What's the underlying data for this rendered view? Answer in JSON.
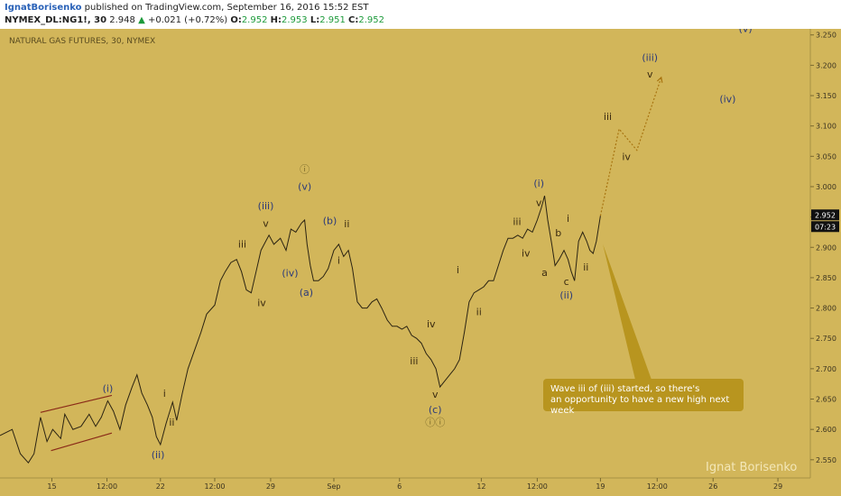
{
  "header": {
    "author": "IgnatBorisenko",
    "published": "published on TradingView.com, September 16, 2016 15:52 EST",
    "symbol": "NYMEX_DL:NG1!, 30",
    "last": "2.948",
    "change": "+0.021 (+0.72%)",
    "o_label": "O:",
    "o_value": "2.952",
    "h_label": "H:",
    "h_value": "2.953",
    "l_label": "L:",
    "l_value": "2.951",
    "c_label": "C:",
    "c_value": "2.952"
  },
  "pane_title": "NATURAL GAS FUTURES, 30, NYMEX",
  "watermark": "Ignat Borisenko",
  "annotation": "Wave iii of (iii) started, so there's an opportunity to have a new high next week",
  "price_tag": {
    "price": "2.952",
    "time": "07:23"
  },
  "colors": {
    "background": "#d2b65a",
    "price_line": "#2b2312",
    "projection": "#a87410",
    "channel": "#8a2a18",
    "note_box": "#b8951f",
    "tag_bg": "#111111"
  },
  "chart_data": {
    "type": "line",
    "title": "NATURAL GAS FUTURES, 30, NYMEX",
    "ylim": [
      2.52,
      3.26
    ],
    "y_ticks": [
      "2.550",
      "2.600",
      "2.650",
      "2.700",
      "2.750",
      "2.800",
      "2.850",
      "2.900",
      "2.950",
      "3.000",
      "3.050",
      "3.100",
      "3.150",
      "3.200",
      "3.250"
    ],
    "x_ticks": [
      "15",
      "12:00",
      "22",
      "12:00",
      "29",
      "Sep",
      "6",
      "12",
      "12:00",
      "19",
      "12:00",
      "26",
      "29"
    ],
    "x_domain": [
      0,
      100
    ],
    "x_tick_positions": [
      6.4,
      13.2,
      19.8,
      26.5,
      33.4,
      41.2,
      49.3,
      59.4,
      66.3,
      74.1,
      81.1,
      88.0,
      96.0
    ],
    "series": [
      {
        "values": [
          [
            0,
            2.59
          ],
          [
            1.5,
            2.6
          ],
          [
            2.5,
            2.56
          ],
          [
            3.5,
            2.545
          ],
          [
            4.2,
            2.56
          ],
          [
            5,
            2.62
          ],
          [
            5.8,
            2.58
          ],
          [
            6.5,
            2.6
          ],
          [
            7.5,
            2.585
          ],
          [
            8,
            2.625
          ],
          [
            9,
            2.6
          ],
          [
            10,
            2.605
          ],
          [
            11,
            2.625
          ],
          [
            11.8,
            2.605
          ],
          [
            12.5,
            2.62
          ],
          [
            13.3,
            2.647
          ],
          [
            14,
            2.63
          ],
          [
            14.8,
            2.6
          ],
          [
            15.5,
            2.64
          ],
          [
            16.3,
            2.67
          ],
          [
            16.9,
            2.69
          ],
          [
            17.5,
            2.66
          ],
          [
            18.2,
            2.64
          ],
          [
            18.8,
            2.62
          ],
          [
            19.3,
            2.588
          ],
          [
            19.8,
            2.575
          ],
          [
            20.5,
            2.61
          ],
          [
            21.3,
            2.645
          ],
          [
            21.8,
            2.615
          ],
          [
            22.5,
            2.66
          ],
          [
            23.2,
            2.7
          ],
          [
            24,
            2.73
          ],
          [
            24.8,
            2.76
          ],
          [
            25.5,
            2.79
          ],
          [
            26.5,
            2.805
          ],
          [
            27.2,
            2.845
          ],
          [
            27.8,
            2.86
          ],
          [
            28.5,
            2.875
          ],
          [
            29.2,
            2.88
          ],
          [
            29.8,
            2.86
          ],
          [
            30.4,
            2.83
          ],
          [
            31,
            2.825
          ],
          [
            31.6,
            2.86
          ],
          [
            32.2,
            2.895
          ],
          [
            32.8,
            2.91
          ],
          [
            33.2,
            2.92
          ],
          [
            33.8,
            2.905
          ],
          [
            34.6,
            2.915
          ],
          [
            35.3,
            2.895
          ],
          [
            35.9,
            2.93
          ],
          [
            36.5,
            2.925
          ],
          [
            37.2,
            2.94
          ],
          [
            37.6,
            2.945
          ],
          [
            37.9,
            2.905
          ],
          [
            38.3,
            2.87
          ],
          [
            38.7,
            2.845
          ],
          [
            39.3,
            2.845
          ],
          [
            39.9,
            2.852
          ],
          [
            40.5,
            2.865
          ],
          [
            41.2,
            2.895
          ],
          [
            41.8,
            2.905
          ],
          [
            42.4,
            2.885
          ],
          [
            43,
            2.895
          ],
          [
            43.5,
            2.865
          ],
          [
            44.1,
            2.81
          ],
          [
            44.7,
            2.8
          ],
          [
            45.3,
            2.8
          ],
          [
            45.9,
            2.81
          ],
          [
            46.5,
            2.815
          ],
          [
            47.1,
            2.8
          ],
          [
            47.8,
            2.78
          ],
          [
            48.4,
            2.77
          ],
          [
            49,
            2.77
          ],
          [
            49.6,
            2.765
          ],
          [
            50.2,
            2.77
          ],
          [
            50.8,
            2.755
          ],
          [
            51.4,
            2.75
          ],
          [
            52,
            2.742
          ],
          [
            52.6,
            2.725
          ],
          [
            53.2,
            2.715
          ],
          [
            53.8,
            2.7
          ],
          [
            54.3,
            2.67
          ],
          [
            54.9,
            2.68
          ],
          [
            55.5,
            2.69
          ],
          [
            56.1,
            2.7
          ],
          [
            56.7,
            2.715
          ],
          [
            57.3,
            2.76
          ],
          [
            57.9,
            2.81
          ],
          [
            58.5,
            2.825
          ],
          [
            59.1,
            2.83
          ],
          [
            59.7,
            2.835
          ],
          [
            60.3,
            2.845
          ],
          [
            60.9,
            2.845
          ],
          [
            61.5,
            2.87
          ],
          [
            62.1,
            2.895
          ],
          [
            62.7,
            2.915
          ],
          [
            63.3,
            2.915
          ],
          [
            63.9,
            2.92
          ],
          [
            64.5,
            2.915
          ],
          [
            65.1,
            2.93
          ],
          [
            65.7,
            2.925
          ],
          [
            66.3,
            2.945
          ],
          [
            66.8,
            2.965
          ],
          [
            67.2,
            2.985
          ],
          [
            67.6,
            2.945
          ],
          [
            68.1,
            2.905
          ],
          [
            68.5,
            2.87
          ],
          [
            69,
            2.88
          ],
          [
            69.6,
            2.895
          ],
          [
            70.1,
            2.88
          ],
          [
            70.5,
            2.86
          ],
          [
            70.9,
            2.845
          ],
          [
            71.4,
            2.91
          ],
          [
            71.9,
            2.925
          ],
          [
            72.4,
            2.91
          ],
          [
            72.8,
            2.895
          ],
          [
            73.2,
            2.89
          ],
          [
            73.6,
            2.91
          ],
          [
            74.1,
            2.952
          ]
        ]
      }
    ],
    "projection": [
      [
        74.1,
        2.952
      ],
      [
        76.4,
        3.095
      ],
      [
        78.6,
        3.06
      ],
      [
        81.6,
        3.18
      ]
    ],
    "channel": [
      [
        [
          5,
          2.628
        ],
        [
          13.8,
          2.656
        ]
      ],
      [
        [
          6.3,
          2.565
        ],
        [
          13.8,
          2.594
        ]
      ]
    ],
    "labels": [
      {
        "text": "(i)",
        "x": 13.3,
        "y": 2.662,
        "c": "blue"
      },
      {
        "text": "(ii)",
        "x": 19.5,
        "y": 2.553,
        "c": "blue"
      },
      {
        "text": "i",
        "x": 20.3,
        "y": 2.654,
        "c": "brown"
      },
      {
        "text": "ii",
        "x": 21.2,
        "y": 2.606,
        "c": "brown"
      },
      {
        "text": "iii",
        "x": 29.9,
        "y": 2.9,
        "c": "brown"
      },
      {
        "text": "iv",
        "x": 32.3,
        "y": 2.803,
        "c": "brown"
      },
      {
        "text": "(iii)",
        "x": 32.8,
        "y": 2.963,
        "c": "blue"
      },
      {
        "text": "v",
        "x": 32.8,
        "y": 2.934,
        "c": "brown"
      },
      {
        "text": "(iv)",
        "x": 35.8,
        "y": 2.852,
        "c": "blue"
      },
      {
        "text": "ⓘ",
        "x": 37.6,
        "y": 3.023,
        "c": "olive"
      },
      {
        "text": "(v)",
        "x": 37.6,
        "y": 2.995,
        "c": "blue"
      },
      {
        "text": "(a)",
        "x": 37.8,
        "y": 2.82,
        "c": "blue"
      },
      {
        "text": "(b)",
        "x": 40.7,
        "y": 2.938,
        "c": "blue"
      },
      {
        "text": "ii",
        "x": 42.8,
        "y": 2.933,
        "c": "brown"
      },
      {
        "text": "i",
        "x": 41.8,
        "y": 2.873,
        "c": "brown"
      },
      {
        "text": "iv",
        "x": 53.2,
        "y": 2.768,
        "c": "brown"
      },
      {
        "text": "iii",
        "x": 51.1,
        "y": 2.707,
        "c": "brown"
      },
      {
        "text": "v",
        "x": 53.7,
        "y": 2.652,
        "c": "brown"
      },
      {
        "text": "(c)",
        "x": 53.7,
        "y": 2.627,
        "c": "blue"
      },
      {
        "text": "ⓘⓘ",
        "x": 53.7,
        "y": 2.606,
        "c": "olive"
      },
      {
        "text": "i",
        "x": 56.5,
        "y": 2.857,
        "c": "brown"
      },
      {
        "text": "ii",
        "x": 59.1,
        "y": 2.788,
        "c": "brown"
      },
      {
        "text": "iii",
        "x": 63.8,
        "y": 2.937,
        "c": "brown"
      },
      {
        "text": "iv",
        "x": 64.9,
        "y": 2.885,
        "c": "brown"
      },
      {
        "text": "(i)",
        "x": 66.5,
        "y": 3.0,
        "c": "blue"
      },
      {
        "text": "v",
        "x": 66.5,
        "y": 2.968,
        "c": "brown"
      },
      {
        "text": "a",
        "x": 67.2,
        "y": 2.853,
        "c": "brown"
      },
      {
        "text": "b",
        "x": 68.9,
        "y": 2.918,
        "c": "brown"
      },
      {
        "text": "i",
        "x": 70.1,
        "y": 2.942,
        "c": "brown"
      },
      {
        "text": "c",
        "x": 69.9,
        "y": 2.838,
        "c": "brown"
      },
      {
        "text": "(ii)",
        "x": 69.9,
        "y": 2.816,
        "c": "blue"
      },
      {
        "text": "ii",
        "x": 72.3,
        "y": 2.862,
        "c": "brown"
      },
      {
        "text": "iii",
        "x": 75.0,
        "y": 3.11,
        "c": "brown"
      },
      {
        "text": "iv",
        "x": 77.3,
        "y": 3.044,
        "c": "brown"
      },
      {
        "text": "(iii)",
        "x": 80.2,
        "y": 3.207,
        "c": "blue"
      },
      {
        "text": "v",
        "x": 80.2,
        "y": 3.18,
        "c": "brown"
      },
      {
        "text": "(iv)",
        "x": 89.8,
        "y": 3.139,
        "c": "blue"
      },
      {
        "text": "(v)",
        "x": 92.0,
        "y": 3.255,
        "c": "blue"
      }
    ]
  }
}
